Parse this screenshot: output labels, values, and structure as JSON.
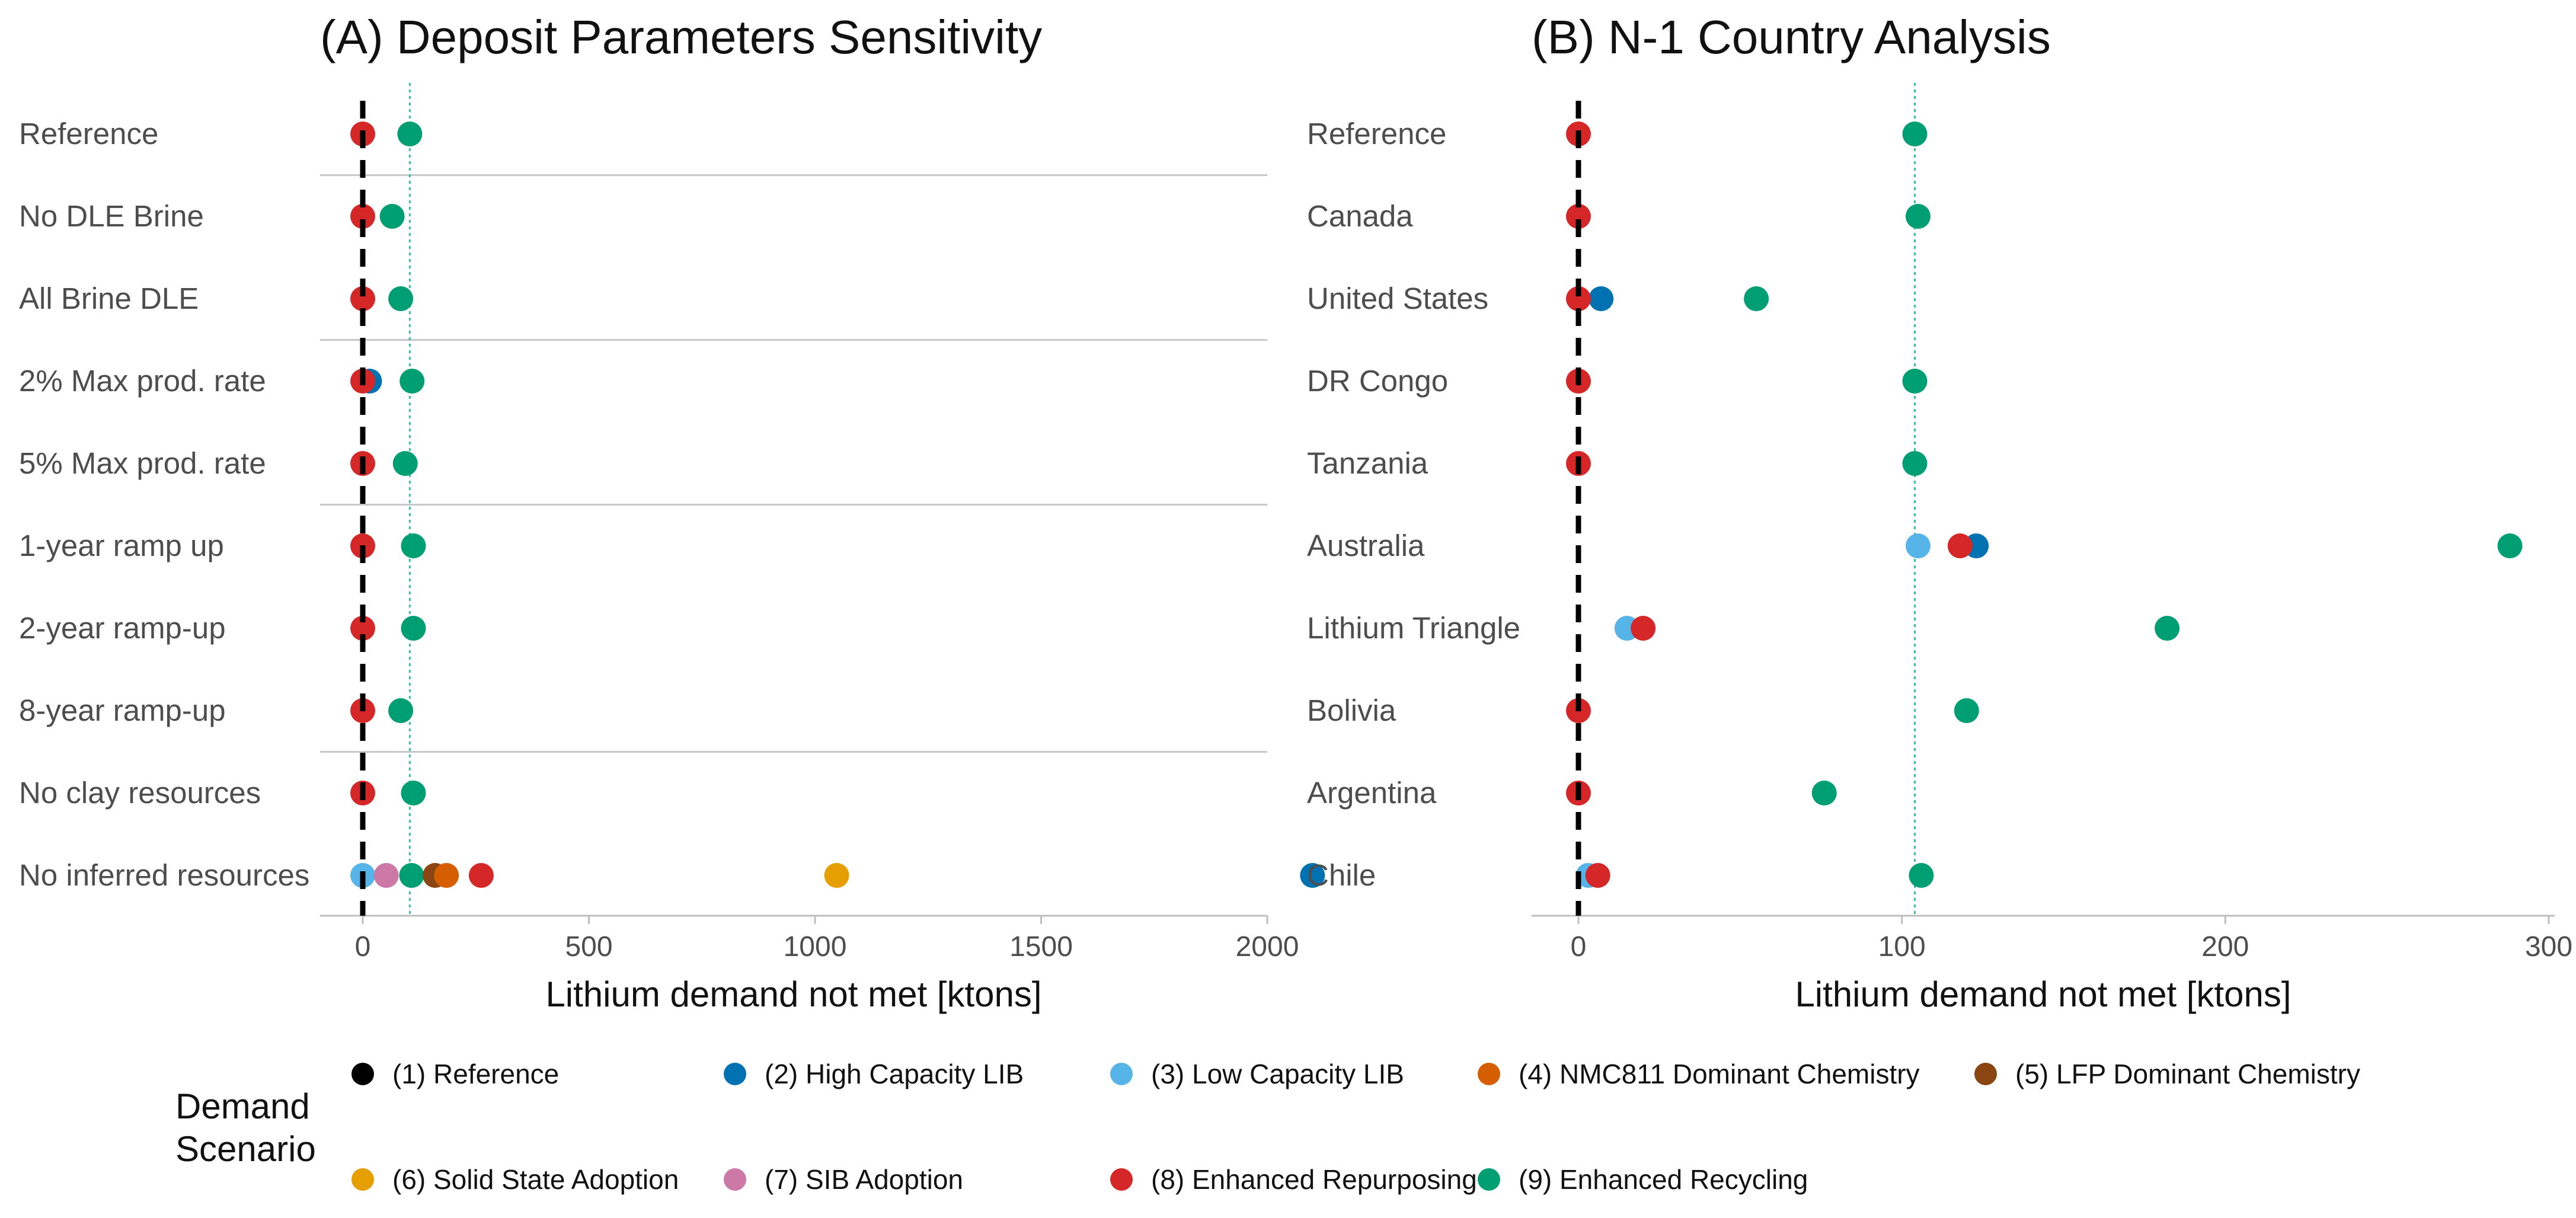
{
  "chart_data": [
    {
      "type": "scatter",
      "title": "(A) Deposit Parameters Sensitivity",
      "xlabel": "Lithium demand not met [ktons]",
      "ylabel": "",
      "xlim": [
        -100,
        2220
      ],
      "xticks": [
        0,
        500,
        1000,
        1500,
        2000
      ],
      "ref_line_x": 0,
      "dotted_line_x": 104,
      "categories": [
        "Reference",
        "No DLE Brine",
        "All Brine DLE",
        "2% Max prod. rate",
        "5% Max prod. rate",
        "1-year ramp up",
        "2-year ramp-up",
        "8-year ramp-up",
        "No clay resources",
        "No inferred resources"
      ],
      "group_separators_after": [
        "Reference",
        "All Brine DLE",
        "5% Max prod. rate",
        "8-year ramp-up"
      ],
      "points": [
        {
          "category": "Reference",
          "scenario": 9,
          "value": 104
        },
        {
          "category": "Reference",
          "scenario": 8,
          "value": 0
        },
        {
          "category": "No DLE Brine",
          "scenario": 9,
          "value": 65
        },
        {
          "category": "No DLE Brine",
          "scenario": 8,
          "value": 0
        },
        {
          "category": "All Brine DLE",
          "scenario": 9,
          "value": 84
        },
        {
          "category": "All Brine DLE",
          "scenario": 8,
          "value": 0
        },
        {
          "category": "2% Max prod. rate",
          "scenario": 9,
          "value": 109
        },
        {
          "category": "2% Max prod. rate",
          "scenario": 2,
          "value": 15
        },
        {
          "category": "2% Max prod. rate",
          "scenario": 8,
          "value": 0
        },
        {
          "category": "5% Max prod. rate",
          "scenario": 9,
          "value": 94
        },
        {
          "category": "5% Max prod. rate",
          "scenario": 8,
          "value": 0
        },
        {
          "category": "1-year ramp up",
          "scenario": 9,
          "value": 112
        },
        {
          "category": "1-year ramp up",
          "scenario": 8,
          "value": 0
        },
        {
          "category": "2-year ramp-up",
          "scenario": 9,
          "value": 112
        },
        {
          "category": "2-year ramp-up",
          "scenario": 8,
          "value": 0
        },
        {
          "category": "8-year ramp-up",
          "scenario": 9,
          "value": 84
        },
        {
          "category": "8-year ramp-up",
          "scenario": 8,
          "value": 0
        },
        {
          "category": "No clay resources",
          "scenario": 9,
          "value": 112
        },
        {
          "category": "No clay resources",
          "scenario": 8,
          "value": 0
        },
        {
          "category": "No inferred resources",
          "scenario": 3,
          "value": 0
        },
        {
          "category": "No inferred resources",
          "scenario": 7,
          "value": 52
        },
        {
          "category": "No inferred resources",
          "scenario": 9,
          "value": 108
        },
        {
          "category": "No inferred resources",
          "scenario": 5,
          "value": 160
        },
        {
          "category": "No inferred resources",
          "scenario": 4,
          "value": 185
        },
        {
          "category": "No inferred resources",
          "scenario": 8,
          "value": 262
        },
        {
          "category": "No inferred resources",
          "scenario": 6,
          "value": 1048
        },
        {
          "category": "No inferred resources",
          "scenario": 2,
          "value": 2100
        }
      ]
    },
    {
      "type": "scatter",
      "title": "(B) N-1 Country Analysis",
      "xlabel": "Lithium demand not met [ktons]",
      "ylabel": "",
      "xlim": [
        -14,
        300
      ],
      "xticks": [
        0,
        100,
        200,
        300
      ],
      "ref_line_x": 0,
      "dotted_line_x": 104,
      "categories": [
        "Reference",
        "Canada",
        "United States",
        "DR Congo",
        "Tanzania",
        "Australia",
        "Lithium Triangle",
        "Bolivia",
        "Argentina",
        "Chile"
      ],
      "group_separators_after": [],
      "points": [
        {
          "category": "Reference",
          "scenario": 9,
          "value": 104
        },
        {
          "category": "Reference",
          "scenario": 8,
          "value": 0
        },
        {
          "category": "Canada",
          "scenario": 9,
          "value": 105
        },
        {
          "category": "Canada",
          "scenario": 8,
          "value": 0
        },
        {
          "category": "United States",
          "scenario": 9,
          "value": 55
        },
        {
          "category": "United States",
          "scenario": 2,
          "value": 7
        },
        {
          "category": "United States",
          "scenario": 8,
          "value": 0
        },
        {
          "category": "DR Congo",
          "scenario": 9,
          "value": 104
        },
        {
          "category": "DR Congo",
          "scenario": 8,
          "value": 0
        },
        {
          "category": "Tanzania",
          "scenario": 9,
          "value": 104
        },
        {
          "category": "Tanzania",
          "scenario": 8,
          "value": 0
        },
        {
          "category": "Australia",
          "scenario": 9,
          "value": 288
        },
        {
          "category": "Australia",
          "scenario": 3,
          "value": 105
        },
        {
          "category": "Australia",
          "scenario": 2,
          "value": 123
        },
        {
          "category": "Australia",
          "scenario": 8,
          "value": 118
        },
        {
          "category": "Lithium Triangle",
          "scenario": 9,
          "value": 182
        },
        {
          "category": "Lithium Triangle",
          "scenario": 3,
          "value": 15
        },
        {
          "category": "Lithium Triangle",
          "scenario": 8,
          "value": 20
        },
        {
          "category": "Bolivia",
          "scenario": 9,
          "value": 120
        },
        {
          "category": "Bolivia",
          "scenario": 8,
          "value": 0
        },
        {
          "category": "Argentina",
          "scenario": 9,
          "value": 76
        },
        {
          "category": "Argentina",
          "scenario": 8,
          "value": 0
        },
        {
          "category": "Chile",
          "scenario": 9,
          "value": 106
        },
        {
          "category": "Chile",
          "scenario": 3,
          "value": 3
        },
        {
          "category": "Chile",
          "scenario": 8,
          "value": 6
        }
      ]
    }
  ],
  "legend": {
    "title": "Demand\nScenario",
    "placement": "bottom",
    "items": [
      {
        "id": 1,
        "label": "(1) Reference",
        "color": "#000000"
      },
      {
        "id": 2,
        "label": "(2) High Capacity LIB",
        "color": "#0072B2"
      },
      {
        "id": 3,
        "label": "(3) Low Capacity LIB",
        "color": "#56B4E9"
      },
      {
        "id": 4,
        "label": "(4) NMC811 Dominant Chemistry",
        "color": "#D55E00"
      },
      {
        "id": 5,
        "label": "(5) LFP Dominant Chemistry",
        "color": "#8B4513"
      },
      {
        "id": 6,
        "label": "(6) Solid State Adoption",
        "color": "#E69F00"
      },
      {
        "id": 7,
        "label": "(7) SIB Adoption",
        "color": "#CC79A7"
      },
      {
        "id": 8,
        "label": "(8) Enhanced Repurposing",
        "color": "#D62728"
      },
      {
        "id": 9,
        "label": "(9) Enhanced Recycling",
        "color": "#009E73"
      }
    ]
  },
  "colors": {
    "reference_line": "#000000",
    "dotted_line": "#33C2A0",
    "separator": "#C8C8C8",
    "axis": "#BEBEBE"
  }
}
